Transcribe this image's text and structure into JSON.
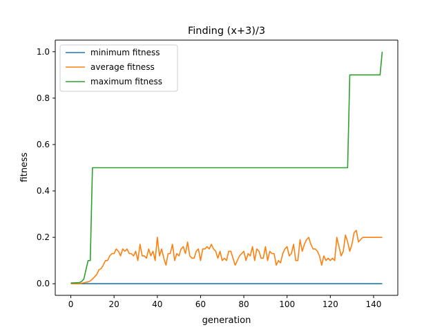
{
  "chart_data": {
    "type": "line",
    "title": "Finding (x+3)/3",
    "xlabel": "generation",
    "ylabel": "fitness",
    "xlim": [
      -7.2,
      151.2
    ],
    "ylim": [
      -0.05,
      1.05
    ],
    "xticks": [
      0,
      20,
      40,
      60,
      80,
      100,
      120,
      140
    ],
    "yticks": [
      0.0,
      0.2,
      0.4,
      0.6,
      0.8,
      1.0
    ],
    "ytick_labels": [
      "0.0",
      "0.2",
      "0.4",
      "0.6",
      "0.8",
      "1.0"
    ],
    "legend_position": "top-left",
    "grid": false,
    "series": [
      {
        "name": "minimum fitness",
        "color": "#1f77b4",
        "x": [
          0,
          144
        ],
        "values": [
          0.0,
          0.0
        ]
      },
      {
        "name": "average fitness",
        "color": "#ff7f0e",
        "x": [
          0,
          1,
          2,
          3,
          4,
          5,
          6,
          7,
          8,
          9,
          10,
          11,
          12,
          13,
          14,
          15,
          16,
          17,
          18,
          19,
          20,
          21,
          22,
          23,
          24,
          25,
          26,
          27,
          28,
          29,
          30,
          31,
          32,
          33,
          34,
          35,
          36,
          37,
          38,
          39,
          40,
          41,
          42,
          43,
          44,
          45,
          46,
          47,
          48,
          49,
          50,
          51,
          52,
          53,
          54,
          55,
          56,
          57,
          58,
          59,
          60,
          61,
          62,
          63,
          64,
          65,
          66,
          67,
          68,
          69,
          70,
          71,
          72,
          73,
          74,
          75,
          76,
          77,
          78,
          79,
          80,
          81,
          82,
          83,
          84,
          85,
          86,
          87,
          88,
          89,
          90,
          91,
          92,
          93,
          94,
          95,
          96,
          97,
          98,
          99,
          100,
          101,
          102,
          103,
          104,
          105,
          106,
          107,
          108,
          109,
          110,
          111,
          112,
          113,
          114,
          115,
          116,
          117,
          118,
          119,
          120,
          121,
          122,
          123,
          124,
          125,
          126,
          127,
          128,
          129,
          130,
          131,
          132,
          133,
          134,
          135,
          136,
          137,
          138,
          139,
          140,
          141,
          142,
          143,
          144
        ],
        "values": [
          0.0,
          0.0,
          0.0,
          0.0,
          0.0,
          0.002,
          0.004,
          0.006,
          0.008,
          0.012,
          0.02,
          0.03,
          0.04,
          0.06,
          0.065,
          0.08,
          0.1,
          0.1,
          0.12,
          0.13,
          0.13,
          0.15,
          0.14,
          0.12,
          0.15,
          0.14,
          0.15,
          0.13,
          0.13,
          0.12,
          0.14,
          0.1,
          0.17,
          0.12,
          0.12,
          0.11,
          0.15,
          0.12,
          0.14,
          0.1,
          0.2,
          0.12,
          0.15,
          0.11,
          0.08,
          0.13,
          0.13,
          0.17,
          0.1,
          0.13,
          0.12,
          0.15,
          0.16,
          0.13,
          0.18,
          0.12,
          0.11,
          0.11,
          0.14,
          0.15,
          0.1,
          0.15,
          0.15,
          0.16,
          0.15,
          0.17,
          0.15,
          0.14,
          0.11,
          0.14,
          0.1,
          0.11,
          0.1,
          0.14,
          0.14,
          0.11,
          0.08,
          0.1,
          0.12,
          0.13,
          0.14,
          0.1,
          0.13,
          0.12,
          0.16,
          0.1,
          0.15,
          0.14,
          0.11,
          0.11,
          0.16,
          0.1,
          0.14,
          0.13,
          0.13,
          0.08,
          0.1,
          0.09,
          0.13,
          0.15,
          0.16,
          0.12,
          0.13,
          0.17,
          0.1,
          0.1,
          0.19,
          0.14,
          0.17,
          0.19,
          0.2,
          0.17,
          0.15,
          0.15,
          0.14,
          0.12,
          0.08,
          0.12,
          0.1,
          0.11,
          0.1,
          0.11,
          0.1,
          0.2,
          0.16,
          0.12,
          0.14,
          0.21,
          0.18,
          0.14,
          0.17,
          0.22,
          0.23,
          0.18,
          0.19,
          0.2,
          0.2,
          0.2,
          0.2,
          0.2,
          0.2,
          0.2,
          0.2,
          0.2,
          0.2
        ]
      },
      {
        "name": "maximum fitness",
        "color": "#2ca02c",
        "x": [
          0,
          4,
          5,
          6,
          7,
          8,
          9,
          10,
          127,
          128,
          129,
          143,
          144
        ],
        "values": [
          0.003,
          0.005,
          0.01,
          0.02,
          0.06,
          0.1,
          0.1,
          0.5,
          0.5,
          0.5,
          0.9,
          0.9,
          1.0
        ]
      }
    ]
  }
}
